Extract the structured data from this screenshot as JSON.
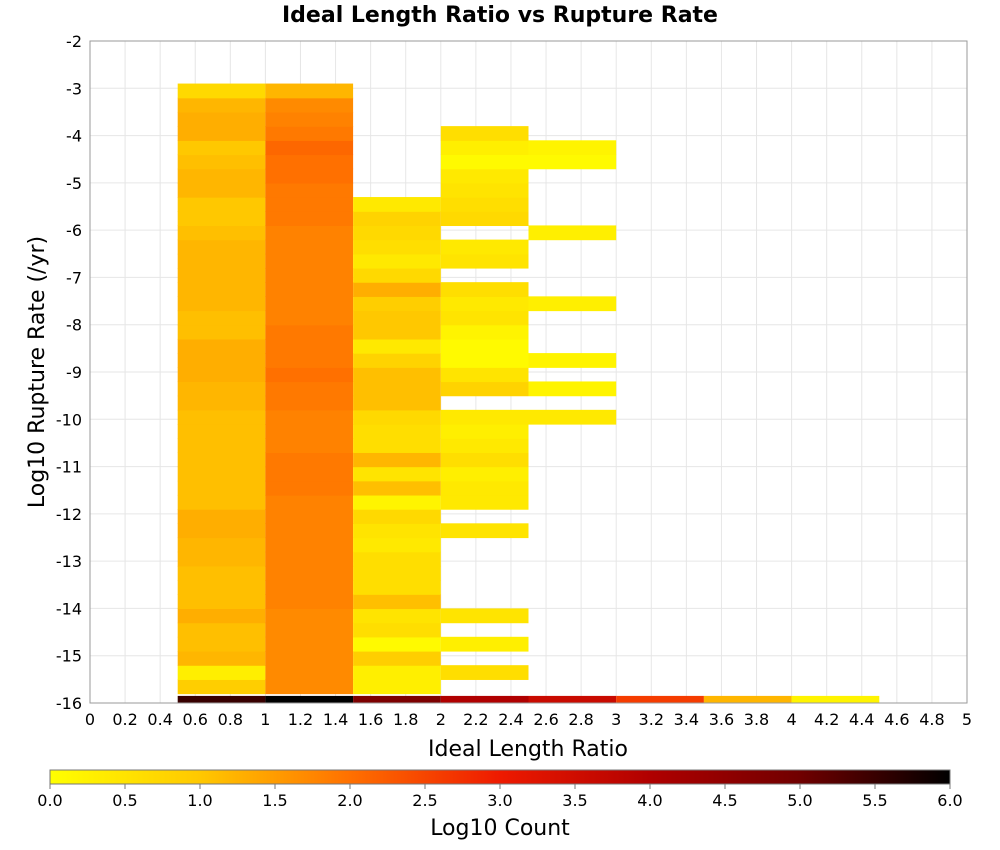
{
  "chart_data": {
    "type": "heatmap",
    "title": "Ideal Length Ratio vs Rupture Rate",
    "xlabel": "Ideal Length Ratio",
    "ylabel": "Log10 Rupture Rate (/yr)",
    "xlim": [
      0,
      5
    ],
    "ylim": [
      -16,
      -2
    ],
    "x_ticks": [
      "0",
      "0.2",
      "0.4",
      "0.6",
      "0.8",
      "1",
      "1.2",
      "1.4",
      "1.6",
      "1.8",
      "2",
      "2.2",
      "2.4",
      "2.6",
      "2.8",
      "3",
      "3.2",
      "3.4",
      "3.6",
      "3.8",
      "4",
      "4.2",
      "4.4",
      "4.6",
      "4.8",
      "5"
    ],
    "y_ticks": [
      "-2",
      "-3",
      "-4",
      "-5",
      "-6",
      "-7",
      "-8",
      "-9",
      "-10",
      "-11",
      "-12",
      "-13",
      "-14",
      "-15",
      "-16"
    ],
    "grid": true,
    "colorbar": {
      "label": "Log10 Count",
      "range": [
        0.0,
        6.0
      ],
      "ticks": [
        "0.0",
        "0.5",
        "1.0",
        "1.5",
        "2.0",
        "2.5",
        "3.0",
        "3.5",
        "4.0",
        "4.5",
        "5.0",
        "5.5",
        "6.0"
      ],
      "stops": [
        "#ffff00",
        "#ffc800",
        "#ff7000",
        "#ee1a00",
        "#b00000",
        "#700000",
        "#000000"
      ]
    },
    "x_bin_width": 0.5,
    "y_bin_height": 0.3,
    "columns": [
      {
        "x": 0.5,
        "y_from": -15.8,
        "values": [
          0.9,
          0.3,
          1.2,
          1.1,
          1.1,
          1.3,
          1.1,
          1.1,
          1.1,
          1.2,
          1.2,
          1.3,
          1.3,
          1.1,
          1.1,
          1.1,
          1.1,
          1.1,
          1.1,
          1.1,
          1.2,
          1.2,
          1.3,
          1.3,
          1.3,
          1.1,
          1.1,
          1.2,
          1.2,
          1.2,
          1.2,
          1.2,
          1.1,
          1.0,
          1.0,
          1.2,
          1.2,
          1.1,
          1.0,
          1.3,
          1.3,
          1.2,
          0.7
        ]
      },
      {
        "x": 1.0,
        "y_from": -15.8,
        "values": [
          1.7,
          1.7,
          1.7,
          1.7,
          1.7,
          1.7,
          1.8,
          1.8,
          1.8,
          1.8,
          1.8,
          1.8,
          1.8,
          1.8,
          1.9,
          1.9,
          1.9,
          1.8,
          1.8,
          1.8,
          1.9,
          1.9,
          2.0,
          1.9,
          1.9,
          1.9,
          1.8,
          1.8,
          1.8,
          1.8,
          1.8,
          1.8,
          1.8,
          1.9,
          1.9,
          1.9,
          2.0,
          2.0,
          2.1,
          1.9,
          1.8,
          1.7,
          1.2
        ]
      },
      {
        "x": 1.5,
        "y_from": -15.8,
        "values": [
          0.3,
          0.3,
          0.9,
          0.1,
          0.6,
          0.5,
          1.1,
          0.6,
          0.6,
          0.6,
          0.4,
          0.5,
          0.7,
          0.2,
          1.1,
          0.5,
          1.2,
          0.6,
          0.6,
          0.7,
          1.1,
          1.1,
          1.1,
          0.8,
          0.4,
          1.0,
          1.0,
          0.9,
          1.3,
          0.7,
          0.4,
          0.6,
          0.7,
          0.8,
          0.4
        ]
      },
      {
        "x": 2.0,
        "y_from": -15.8,
        "values": [
          null,
          0.6,
          null,
          0.3,
          null,
          0.5,
          null,
          null,
          null,
          null,
          null,
          0.5,
          null,
          0.4,
          0.4,
          0.3,
          0.6,
          0.4,
          0.3,
          0.4,
          null,
          0.8,
          0.5,
          0.1,
          0.1,
          0.2,
          0.5,
          0.4,
          0.6,
          null,
          0.5,
          0.4,
          null,
          0.7,
          0.6,
          0.5,
          0.4,
          0.1,
          0.3,
          0.6
        ]
      },
      {
        "x": 2.5,
        "y_from": -10.1,
        "values": [
          0.4,
          null,
          0.2,
          null,
          0.2,
          null,
          null,
          null,
          0.3,
          null,
          null,
          null,
          null,
          0.3,
          null,
          null,
          null,
          null,
          0.1,
          0.2
        ]
      }
    ],
    "bottom_row": {
      "y_from": -16.0,
      "height": 0.15,
      "cells": [
        {
          "x": 0.5,
          "value": 5.5
        },
        {
          "x": 1.0,
          "value": 6.0
        },
        {
          "x": 1.5,
          "value": 4.8
        },
        {
          "x": 2.0,
          "value": 4.0
        },
        {
          "x": 2.5,
          "value": 3.6
        },
        {
          "x": 3.0,
          "value": 2.6
        },
        {
          "x": 3.5,
          "value": 1.2
        },
        {
          "x": 4.0,
          "value": 0.2
        }
      ]
    }
  }
}
